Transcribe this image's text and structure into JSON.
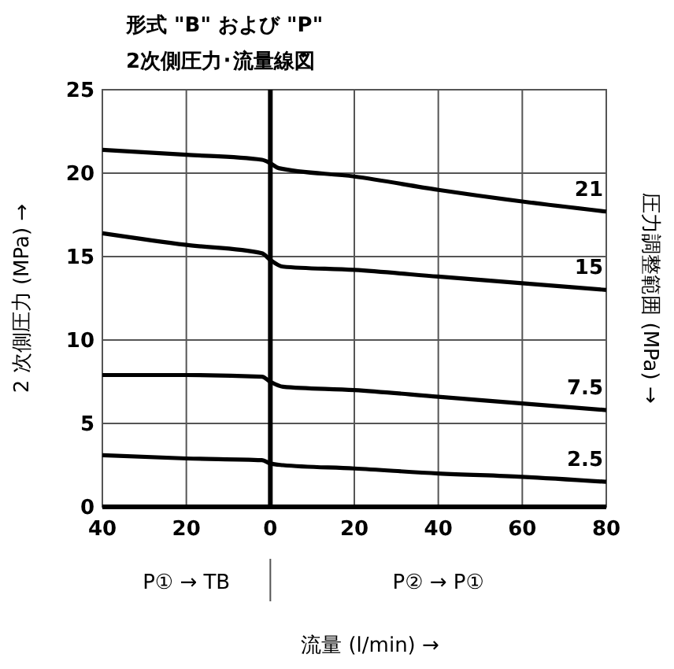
{
  "chart_data": {
    "type": "line",
    "title": "形式 \"B\" および \"P\"",
    "subtitle": "2次側圧力･流量線図",
    "xlabel": "流量 (l/min) →",
    "ylabel": "2 次側圧力 (MPa) →",
    "y2label": "圧力調整範囲 (MPa) →",
    "xlim": [
      -40,
      80
    ],
    "xticks": [
      {
        "value": -40,
        "label": "40"
      },
      {
        "value": -20,
        "label": "20"
      },
      0,
      20,
      40,
      60,
      80
    ],
    "ylim": [
      0,
      25
    ],
    "yticks": [
      0,
      5,
      10,
      15,
      20,
      25
    ],
    "grid": true,
    "marker": "none",
    "line_style": "solid",
    "ref_lines": [
      {
        "axis": "x",
        "value": 0,
        "color": "#000000"
      }
    ],
    "annotations": [
      "P① → TB",
      "P② → P①"
    ],
    "series": [
      {
        "name": "21",
        "color": "#000000",
        "x": [
          -40,
          -20,
          -2,
          0,
          2,
          20,
          40,
          60,
          80
        ],
        "values": [
          21.4,
          21.1,
          20.8,
          20.6,
          20.3,
          19.8,
          19.0,
          18.3,
          17.7
        ]
      },
      {
        "name": "15",
        "color": "#000000",
        "x": [
          -40,
          -20,
          -2,
          0,
          3,
          20,
          40,
          60,
          80
        ],
        "values": [
          16.4,
          15.7,
          15.2,
          14.8,
          14.4,
          14.2,
          13.8,
          13.4,
          13.0
        ]
      },
      {
        "name": "7.5",
        "color": "#000000",
        "x": [
          -40,
          -20,
          -2,
          0,
          3,
          20,
          40,
          60,
          80
        ],
        "values": [
          7.9,
          7.9,
          7.8,
          7.5,
          7.2,
          7.0,
          6.6,
          6.2,
          5.8
        ]
      },
      {
        "name": "2.5",
        "color": "#000000",
        "x": [
          -40,
          -20,
          -2,
          0,
          3,
          20,
          40,
          60,
          80
        ],
        "values": [
          3.1,
          2.9,
          2.8,
          2.6,
          2.5,
          2.3,
          2.0,
          1.8,
          1.5
        ]
      }
    ]
  }
}
